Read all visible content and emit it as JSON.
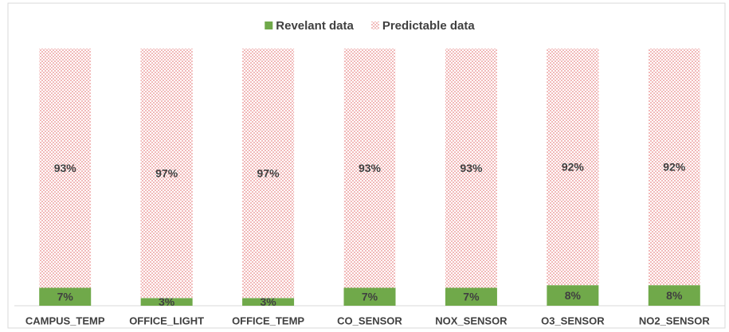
{
  "chart_data": {
    "type": "bar",
    "stacked": true,
    "categories": [
      "CAMPUS_TEMP",
      "OFFICE_LIGHT",
      "OFFICE_TEMP",
      "CO_SENSOR",
      "NOX_SENSOR",
      "O3_SENSOR",
      "NO2_SENSOR"
    ],
    "series": [
      {
        "name": "Revelant data",
        "color": "#70a94a",
        "pattern": "solid",
        "values": [
          7,
          3,
          3,
          7,
          7,
          8,
          8
        ],
        "value_labels": [
          "7%",
          "3%",
          "3%",
          "7%",
          "7%",
          "8%",
          "8%"
        ]
      },
      {
        "name": "Predictable data",
        "color": "#e05a5a",
        "pattern": "dots",
        "values": [
          93,
          97,
          97,
          93,
          93,
          92,
          92
        ],
        "value_labels": [
          "93%",
          "97%",
          "97%",
          "93%",
          "93%",
          "92%",
          "92%"
        ]
      }
    ],
    "ylim": [
      0,
      100
    ],
    "legend": "top"
  }
}
